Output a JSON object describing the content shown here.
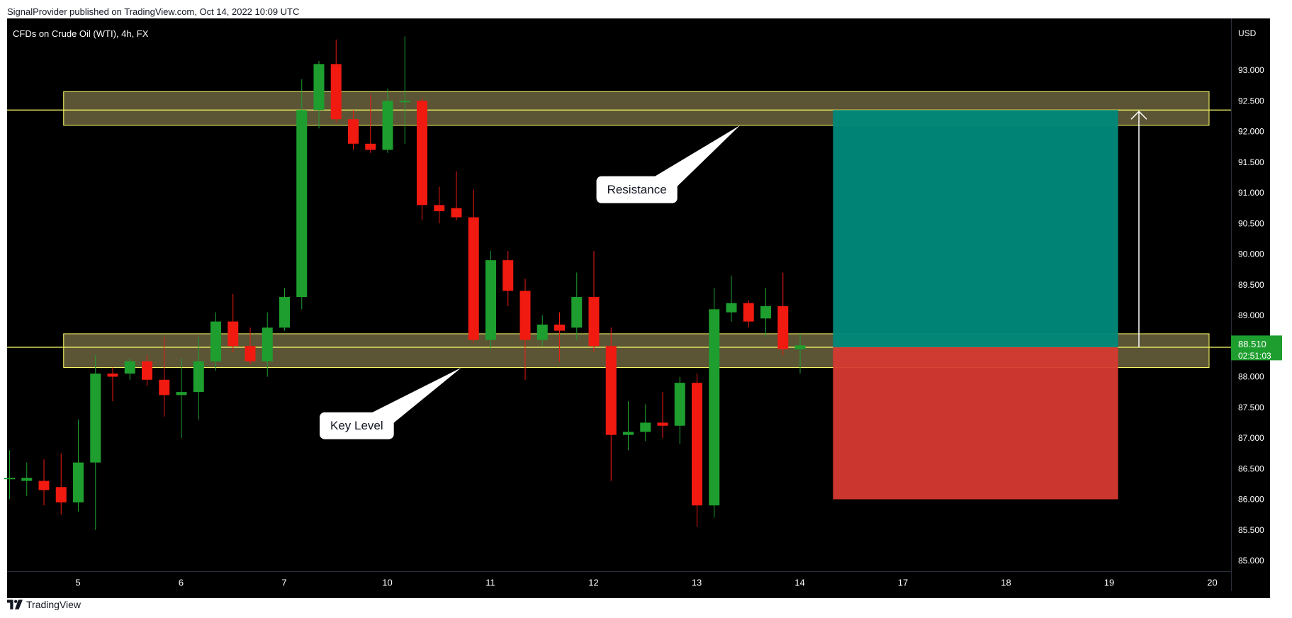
{
  "header": {
    "published": "SignalProvider published on TradingView.com, Oct 14, 2022 10:09 UTC"
  },
  "chart": {
    "symbol_title": "CFDs on Crude Oil (WTI), 4h, FX",
    "currency": "USD",
    "last_price": "88.510",
    "countdown": "02:51:03"
  },
  "footer": {
    "brand": "TradingView"
  },
  "colors": {
    "background": "#000000",
    "bull": "#1e9e2e",
    "bear": "#f01a10",
    "zone_fill": "#6b6440",
    "zone_line": "#ffff66",
    "target_zone": "#00897b",
    "stop_zone": "#d63a30",
    "price_badge": "#1e9e2e"
  },
  "chart_data": {
    "type": "candlestick",
    "ylim": [
      84.8,
      94.0
    ],
    "y_ticks": [
      "85.000",
      "85.500",
      "86.000",
      "86.500",
      "87.000",
      "87.500",
      "88.000",
      "88.500",
      "89.000",
      "89.500",
      "90.000",
      "90.500",
      "91.000",
      "91.500",
      "92.000",
      "92.500",
      "93.000"
    ],
    "x_ticks": [
      {
        "label": "5",
        "i": 2
      },
      {
        "label": "6",
        "i": 8
      },
      {
        "label": "7",
        "i": 14
      },
      {
        "label": "10",
        "i": 20
      },
      {
        "label": "11",
        "i": 26
      },
      {
        "label": "12",
        "i": 32
      },
      {
        "label": "13",
        "i": 38
      },
      {
        "label": "14",
        "i": 44
      },
      {
        "label": "17",
        "i": 50
      },
      {
        "label": "18",
        "i": 56
      },
      {
        "label": "19",
        "i": 62
      },
      {
        "label": "20",
        "i": 68
      }
    ],
    "candles": [
      [
        86.35,
        86.8,
        86.0,
        86.35
      ],
      [
        86.3,
        86.6,
        86.05,
        86.35
      ],
      [
        86.3,
        86.65,
        85.9,
        86.15
      ],
      [
        86.2,
        86.75,
        85.75,
        85.95
      ],
      [
        85.95,
        87.3,
        85.8,
        86.6
      ],
      [
        86.6,
        88.35,
        85.5,
        88.05
      ],
      [
        88.05,
        88.15,
        87.6,
        88.0
      ],
      [
        88.05,
        88.3,
        87.95,
        88.25
      ],
      [
        88.25,
        88.35,
        87.85,
        87.95
      ],
      [
        87.95,
        88.65,
        87.35,
        87.7
      ],
      [
        87.7,
        88.3,
        87.0,
        87.75
      ],
      [
        87.75,
        88.65,
        87.3,
        88.25
      ],
      [
        88.25,
        89.05,
        88.1,
        88.9
      ],
      [
        88.9,
        89.35,
        88.4,
        88.5
      ],
      [
        88.5,
        88.8,
        88.2,
        88.25
      ],
      [
        88.25,
        89.05,
        88.0,
        88.8
      ],
      [
        88.8,
        89.45,
        88.75,
        89.3
      ],
      [
        89.3,
        92.85,
        89.1,
        92.35
      ],
      [
        92.35,
        93.15,
        92.05,
        93.1
      ],
      [
        93.1,
        93.5,
        92.15,
        92.2
      ],
      [
        92.2,
        92.35,
        91.7,
        91.8
      ],
      [
        91.8,
        92.6,
        91.65,
        91.7
      ],
      [
        91.7,
        92.7,
        91.65,
        92.5
      ],
      [
        92.5,
        93.55,
        91.8,
        92.5
      ],
      [
        92.5,
        92.55,
        90.55,
        90.8
      ],
      [
        90.8,
        91.1,
        90.5,
        90.7
      ],
      [
        90.75,
        91.35,
        90.55,
        90.6
      ],
      [
        90.6,
        91.05,
        88.55,
        88.6
      ],
      [
        88.6,
        90.05,
        88.45,
        89.9
      ],
      [
        89.9,
        90.05,
        89.15,
        89.4
      ],
      [
        89.4,
        89.6,
        87.95,
        88.6
      ],
      [
        88.6,
        89.0,
        88.5,
        88.85
      ],
      [
        88.85,
        89.05,
        88.25,
        88.75
      ],
      [
        88.8,
        89.7,
        88.6,
        89.3
      ],
      [
        89.3,
        90.05,
        88.4,
        88.5
      ],
      [
        88.5,
        88.8,
        86.3,
        87.05
      ],
      [
        87.05,
        87.6,
        86.8,
        87.1
      ],
      [
        87.1,
        87.55,
        86.95,
        87.25
      ],
      [
        87.25,
        87.75,
        87.0,
        87.2
      ],
      [
        87.2,
        88.0,
        86.9,
        87.9
      ],
      [
        87.9,
        88.05,
        85.55,
        85.9
      ],
      [
        85.9,
        89.45,
        85.7,
        89.1
      ],
      [
        89.05,
        89.65,
        88.9,
        89.2
      ],
      [
        89.2,
        89.25,
        88.8,
        88.9
      ],
      [
        88.95,
        89.45,
        88.65,
        89.15
      ],
      [
        89.15,
        89.7,
        88.35,
        88.45
      ],
      [
        88.45,
        88.7,
        88.05,
        88.51
      ]
    ],
    "zones": [
      {
        "name": "resistance",
        "top": 92.65,
        "bottom": 92.1,
        "level": 92.35,
        "i_start": 1,
        "i_end": 70
      },
      {
        "name": "key-level",
        "top": 88.7,
        "bottom": 88.15,
        "level": 88.48,
        "i_start": 1,
        "i_end": 70
      }
    ],
    "position": {
      "entry": 88.48,
      "target": 92.35,
      "stop": 86.0,
      "i_start": 47.5,
      "i_end": 64.5
    },
    "annotations": [
      {
        "label": "Resistance",
        "price": 91.05,
        "i": 36.5,
        "pointer_price": 92.1,
        "pointer_i": 42.5
      },
      {
        "label": "Key Level",
        "price": 87.2,
        "i": 20.2,
        "pointer_price": 88.15,
        "pointer_i": 26.3
      }
    ]
  }
}
